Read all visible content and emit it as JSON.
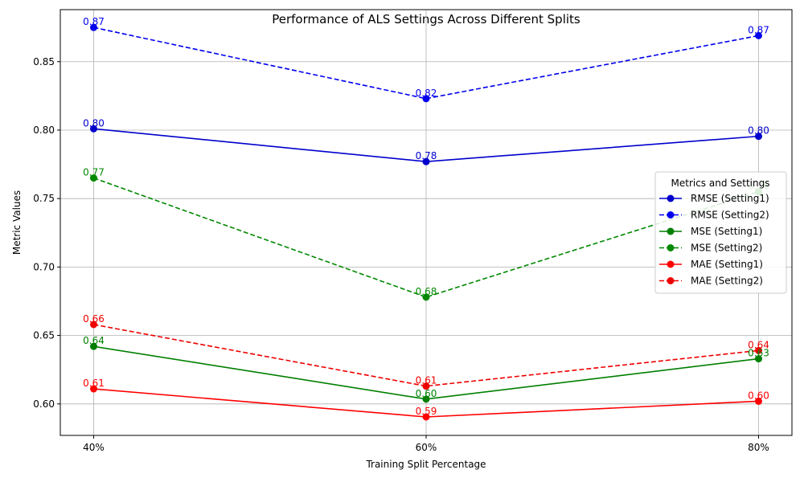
{
  "chart_data": {
    "type": "line",
    "title": "Performance of ALS Settings Across Different Splits",
    "xlabel": "Training Split Percentage",
    "ylabel": "Metric Values",
    "categories": [
      "40%",
      "60%",
      "80%"
    ],
    "ylim": [
      0.577,
      0.888
    ],
    "yticks": [
      0.6,
      0.65,
      0.7,
      0.75,
      0.8,
      0.85
    ],
    "ytick_labels": [
      "0.60",
      "0.65",
      "0.70",
      "0.75",
      "0.80",
      "0.85"
    ],
    "grid": true,
    "legend": {
      "title": "Metrics and Settings",
      "placement": "center-right"
    },
    "series": [
      {
        "name": "RMSE (Setting1)",
        "color": "#0000cc",
        "dash": "solid",
        "values": [
          0.801,
          0.777,
          0.7955
        ],
        "labels": [
          "0.80",
          "0.78",
          "0.80"
        ]
      },
      {
        "name": "RMSE (Setting2)",
        "color": "#0000ee",
        "dash": "dashed",
        "values": [
          0.875,
          0.823,
          0.869
        ],
        "labels": [
          "0.87",
          "0.82",
          "0.87"
        ]
      },
      {
        "name": "MSE (Setting1)",
        "color": "#007f00",
        "dash": "solid",
        "values": [
          0.642,
          0.6035,
          0.633
        ],
        "labels": [
          "0.64",
          "0.60",
          "0.63"
        ]
      },
      {
        "name": "MSE (Setting2)",
        "color": "#008800",
        "dash": "dashed",
        "values": [
          0.765,
          0.678,
          0.755
        ],
        "labels": [
          "0.77",
          "0.68",
          "0.76"
        ]
      },
      {
        "name": "MAE (Setting1)",
        "color": "#ff0000",
        "dash": "solid",
        "values": [
          0.611,
          0.5905,
          0.602
        ],
        "labels": [
          "0.61",
          "0.59",
          "0.60"
        ]
      },
      {
        "name": "MAE (Setting2)",
        "color": "#ee0000",
        "dash": "dashed",
        "values": [
          0.658,
          0.613,
          0.639
        ],
        "labels": [
          "0.66",
          "0.61",
          "0.64"
        ]
      }
    ]
  }
}
